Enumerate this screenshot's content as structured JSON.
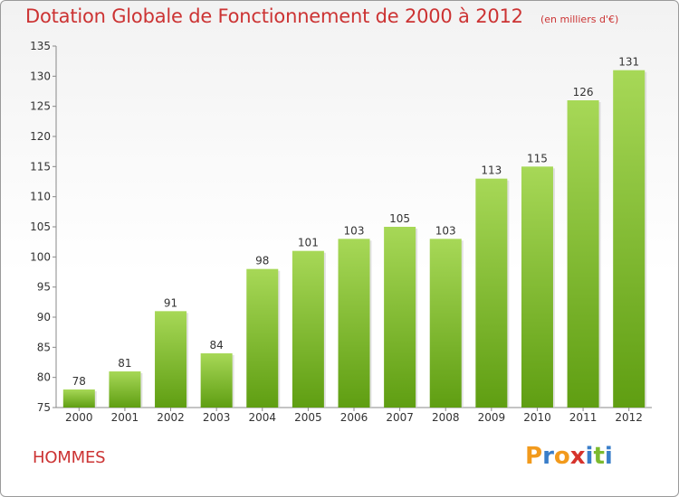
{
  "title": "Dotation Globale de Fonctionnement de 2000 à 2012",
  "unit_note": "(en milliers d'€)",
  "footer_label": "HOMMES",
  "logo": {
    "letters": [
      "P",
      "r",
      "o",
      "x",
      "i",
      "t",
      "i"
    ],
    "colors": [
      "#f29a1c",
      "#3a7ec9",
      "#f29a1c",
      "#d6332c",
      "#3a7ec9",
      "#7cba2e",
      "#3a7ec9"
    ]
  },
  "colors": {
    "title": "#cc3333",
    "bar_light": "#a7d857",
    "bar_dark": "#5f9e12"
  },
  "chart_data": {
    "type": "bar",
    "categories": [
      "2000",
      "2001",
      "2002",
      "2003",
      "2004",
      "2005",
      "2006",
      "2007",
      "2008",
      "2009",
      "2010",
      "2011",
      "2012"
    ],
    "values": [
      78,
      81,
      91,
      84,
      98,
      101,
      103,
      105,
      103,
      113,
      115,
      126,
      131
    ],
    "ylim": [
      75,
      135
    ],
    "yticks": [
      75,
      80,
      85,
      90,
      95,
      100,
      105,
      110,
      115,
      120,
      125,
      130,
      135
    ],
    "grid": false,
    "data_labels": true
  }
}
